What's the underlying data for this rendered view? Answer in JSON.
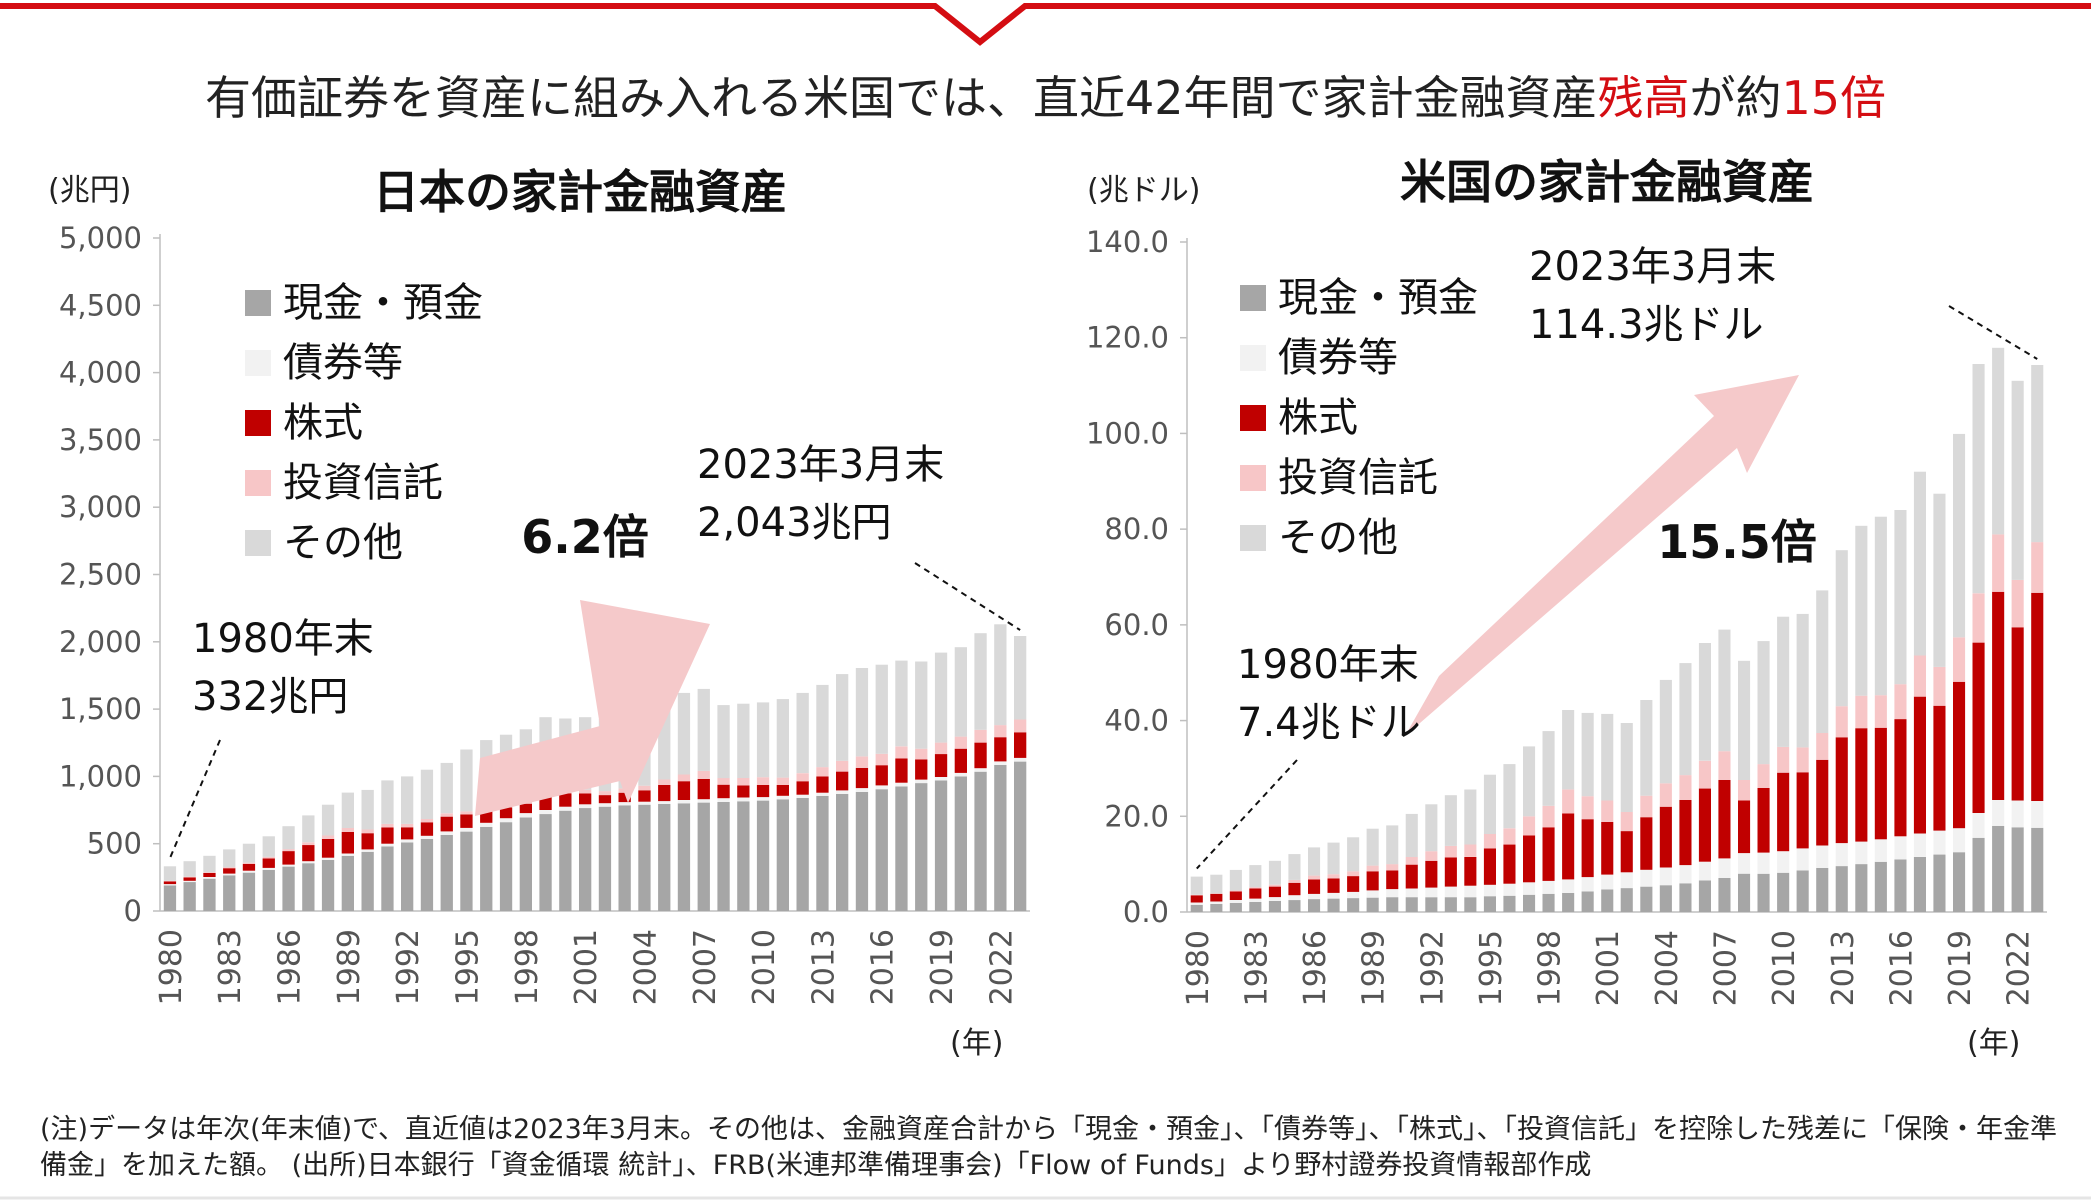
{
  "headline": {
    "part1": "有価証券を資産に組み入れる米国では、直近42年間で家計金融資産",
    "part2": "残高",
    "part3": "が約",
    "part4": "15倍"
  },
  "colors": {
    "cash": "#a6a6a6",
    "bonds": "#f2f2f2",
    "stocks": "#c00000",
    "trusts": "#f7c6c7",
    "other": "#d9d9d9",
    "arrow": "#f5c9ca",
    "accent": "#d40d12"
  },
  "note": "(注)データは年次(年末値)で、直近値は2023年3月末。その他は、金融資産合計から「現金・預金」、「債券等」、「株式」、「投資信託」を控除した残差に「保険・年金準備金」を加えた額。 (出所)日本銀行「資金循環 統計」、FRB(米連邦準備理事会)「Flow of Funds」より野村證券投資情報部作成",
  "chart_data": [
    {
      "type": "bar",
      "stacked": true,
      "title": "日本の家計金融資産",
      "unit_label": "(兆円)",
      "x_unit_label": "(年)",
      "ylim": [
        0,
        5000
      ],
      "y_ticks": [
        "0",
        "500",
        "1,000",
        "1,500",
        "2,000",
        "2,500",
        "3,000",
        "3,500",
        "4,000",
        "4,500",
        "5,000"
      ],
      "y_tick_values": [
        0,
        500,
        1000,
        1500,
        2000,
        2500,
        3000,
        3500,
        4000,
        4500,
        5000
      ],
      "x_tick_labels": [
        "1980",
        "1983",
        "1986",
        "1989",
        "1992",
        "1995",
        "1998",
        "2001",
        "2004",
        "2007",
        "2010",
        "2013",
        "2016",
        "2019",
        "2022"
      ],
      "categories": [
        "1980",
        "1981",
        "1982",
        "1983",
        "1984",
        "1985",
        "1986",
        "1987",
        "1988",
        "1989",
        "1990",
        "1991",
        "1992",
        "1993",
        "1994",
        "1995",
        "1996",
        "1997",
        "1998",
        "1999",
        "2000",
        "2001",
        "2002",
        "2003",
        "2004",
        "2005",
        "2006",
        "2007",
        "2008",
        "2009",
        "2010",
        "2011",
        "2012",
        "2013",
        "2014",
        "2015",
        "2016",
        "2017",
        "2018",
        "2019",
        "2020",
        "2021",
        "2022",
        "2023"
      ],
      "legend": [
        "現金・預金",
        "債券等",
        "株式",
        "投資信託",
        "その他"
      ],
      "series": [
        {
          "name": "現金・預金",
          "values": [
            190,
            215,
            240,
            265,
            285,
            305,
            330,
            355,
            380,
            410,
            440,
            480,
            510,
            535,
            565,
            590,
            625,
            660,
            695,
            720,
            745,
            765,
            775,
            785,
            790,
            795,
            800,
            805,
            810,
            815,
            820,
            830,
            840,
            855,
            870,
            885,
            905,
            925,
            950,
            970,
            1000,
            1035,
            1085,
            1110
          ]
        },
        {
          "name": "債券等",
          "values": [
            10,
            10,
            12,
            13,
            14,
            15,
            15,
            15,
            16,
            17,
            18,
            20,
            22,
            24,
            26,
            28,
            30,
            30,
            32,
            30,
            30,
            28,
            26,
            24,
            22,
            22,
            24,
            26,
            28,
            28,
            26,
            26,
            24,
            24,
            26,
            28,
            28,
            28,
            26,
            26,
            26,
            26,
            26,
            28
          ]
        },
        {
          "name": "株式",
          "values": [
            20,
            25,
            30,
            40,
            50,
            70,
            100,
            120,
            140,
            160,
            120,
            120,
            90,
            100,
            110,
            100,
            95,
            80,
            70,
            110,
            100,
            80,
            60,
            70,
            85,
            120,
            140,
            150,
            100,
            90,
            90,
            80,
            100,
            120,
            140,
            150,
            150,
            180,
            150,
            170,
            180,
            190,
            180,
            190
          ]
        },
        {
          "name": "投資信託",
          "values": [
            4,
            5,
            6,
            8,
            10,
            12,
            15,
            20,
            25,
            30,
            28,
            27,
            25,
            25,
            25,
            22,
            20,
            18,
            18,
            22,
            25,
            28,
            30,
            32,
            34,
            40,
            50,
            60,
            50,
            55,
            58,
            55,
            60,
            70,
            80,
            85,
            85,
            90,
            80,
            85,
            90,
            95,
            90,
            95
          ]
        },
        {
          "name": "その他",
          "values": [
            108,
            115,
            122,
            132,
            141,
            153,
            170,
            200,
            229,
            263,
            294,
            323,
            353,
            366,
            374,
            460,
            500,
            522,
            535,
            558,
            530,
            539,
            535,
            541,
            549,
            583,
            606,
            609,
            542,
            552,
            556,
            583,
            596,
            611,
            644,
            657,
            662,
            637,
            648,
            669,
            664,
            718,
            749,
            620
          ]
        }
      ],
      "totals": [
        332,
        370,
        410,
        458,
        500,
        555,
        630,
        710,
        790,
        880,
        900,
        970,
        1000,
        1050,
        1100,
        1200,
        1270,
        1310,
        1350,
        1440,
        1430,
        1440,
        1425,
        1450,
        1480,
        1560,
        1620,
        1650,
        1530,
        1540,
        1550,
        1574,
        1620,
        1680,
        1760,
        1805,
        1830,
        1860,
        1855,
        1920,
        1960,
        2064,
        2130,
        2043
      ],
      "annotations": [
        {
          "line1": "1980年末",
          "line2": "332兆円"
        },
        {
          "line1": "2023年3月末",
          "line2": "2,043兆円"
        }
      ],
      "multiplier": "6.2倍"
    },
    {
      "type": "bar",
      "stacked": true,
      "title": "米国の家計金融資産",
      "unit_label": "(兆ドル)",
      "x_unit_label": "(年)",
      "ylim": [
        0,
        140
      ],
      "y_ticks": [
        "0.0",
        "20.0",
        "40.0",
        "60.0",
        "80.0",
        "100.0",
        "120.0",
        "140.0"
      ],
      "y_tick_values": [
        0,
        20,
        40,
        60,
        80,
        100,
        120,
        140
      ],
      "x_tick_labels": [
        "1980",
        "1983",
        "1986",
        "1989",
        "1992",
        "1995",
        "1998",
        "2001",
        "2004",
        "2007",
        "2010",
        "2013",
        "2016",
        "2019",
        "2022"
      ],
      "categories": [
        "1980",
        "1981",
        "1982",
        "1983",
        "1984",
        "1985",
        "1986",
        "1987",
        "1988",
        "1989",
        "1990",
        "1991",
        "1992",
        "1993",
        "1994",
        "1995",
        "1996",
        "1997",
        "1998",
        "1999",
        "2000",
        "2001",
        "2002",
        "2003",
        "2004",
        "2005",
        "2006",
        "2007",
        "2008",
        "2009",
        "2010",
        "2011",
        "2012",
        "2013",
        "2014",
        "2015",
        "2016",
        "2017",
        "2018",
        "2019",
        "2020",
        "2021",
        "2022",
        "2023"
      ],
      "legend": [
        "現金・預金",
        "債券等",
        "株式",
        "投資信託",
        "その他"
      ],
      "series": [
        {
          "name": "現金・預金",
          "values": [
            1.5,
            1.7,
            1.9,
            2.1,
            2.3,
            2.5,
            2.7,
            2.8,
            2.9,
            3.0,
            3.1,
            3.1,
            3.1,
            3.1,
            3.1,
            3.3,
            3.4,
            3.6,
            3.8,
            4.0,
            4.3,
            4.7,
            5.0,
            5.3,
            5.6,
            6.0,
            6.6,
            7.1,
            8.0,
            8.0,
            8.2,
            8.7,
            9.2,
            9.6,
            10.0,
            10.5,
            11.0,
            11.5,
            12.0,
            12.5,
            15.5,
            18.0,
            17.7,
            17.6
          ]
        },
        {
          "name": "債券等",
          "values": [
            0.5,
            0.5,
            0.6,
            0.7,
            0.8,
            1.0,
            1.1,
            1.2,
            1.3,
            1.5,
            1.7,
            1.8,
            2.0,
            2.2,
            2.4,
            2.4,
            2.5,
            2.6,
            2.7,
            2.8,
            3.0,
            3.1,
            3.3,
            3.5,
            3.7,
            3.8,
            3.9,
            4.1,
            4.3,
            4.4,
            4.5,
            4.6,
            4.7,
            4.8,
            4.7,
            4.7,
            4.8,
            4.9,
            5.0,
            5.0,
            5.2,
            5.4,
            5.6,
            5.6
          ]
        },
        {
          "name": "株式",
          "values": [
            1.5,
            1.6,
            1.8,
            2.1,
            2.2,
            2.6,
            3.0,
            3.0,
            3.3,
            4.0,
            3.9,
            5.0,
            5.6,
            6.1,
            6.0,
            7.6,
            8.2,
            9.8,
            11.2,
            13.8,
            12.1,
            11.0,
            8.6,
            11.0,
            12.7,
            13.6,
            15.3,
            16.4,
            11.0,
            13.5,
            16.4,
            15.9,
            17.9,
            22.1,
            23.7,
            23.3,
            24.5,
            28.6,
            26.1,
            30.6,
            35.6,
            43.5,
            36.2,
            43.5
          ]
        },
        {
          "name": "投資信託",
          "values": [
            0.1,
            0.1,
            0.2,
            0.3,
            0.4,
            0.6,
            0.8,
            0.9,
            1.0,
            1.2,
            1.3,
            1.6,
            2.0,
            2.4,
            2.6,
            3.0,
            3.4,
            4.0,
            4.5,
            5.0,
            4.8,
            4.5,
            4.0,
            4.5,
            4.9,
            5.2,
            5.8,
            6.0,
            4.3,
            5.0,
            5.4,
            5.2,
            5.6,
            6.5,
            6.8,
            6.8,
            7.3,
            8.6,
            8.1,
            9.3,
            10.3,
            12.0,
            9.9,
            10.6
          ]
        },
        {
          "name": "その他",
          "values": [
            3.8,
            3.9,
            4.3,
            4.6,
            5.0,
            5.4,
            5.9,
            6.6,
            7.1,
            7.7,
            8.1,
            9.0,
            9.8,
            10.6,
            11.5,
            12.4,
            13.4,
            14.6,
            15.6,
            16.6,
            17.4,
            18.1,
            18.6,
            20.0,
            21.6,
            23.4,
            24.6,
            25.4,
            24.9,
            25.7,
            27.2,
            27.9,
            29.8,
            32.6,
            35.5,
            37.3,
            36.4,
            38.4,
            36.2,
            42.5,
            47.9,
            39.0,
            41.6,
            37.0
          ]
        }
      ],
      "totals": [
        7.4,
        7.8,
        8.8,
        9.8,
        10.7,
        12.1,
        13.5,
        14.5,
        15.6,
        17.4,
        18.1,
        20.5,
        22.5,
        24.4,
        25.6,
        28.7,
        30.9,
        34.6,
        37.8,
        42.2,
        41.6,
        41.4,
        39.5,
        44.3,
        48.5,
        52.0,
        56.2,
        59.0,
        52.5,
        56.6,
        61.7,
        62.3,
        67.2,
        75.6,
        80.7,
        82.6,
        84.0,
        92.0,
        87.4,
        99.9,
        114.5,
        117.9,
        111.0,
        114.3
      ],
      "annotations": [
        {
          "line1": "1980年末",
          "line2": "7.4兆ドル"
        },
        {
          "line1": "2023年3月末",
          "line2": "114.3兆ドル"
        }
      ],
      "multiplier": "15.5倍"
    }
  ]
}
